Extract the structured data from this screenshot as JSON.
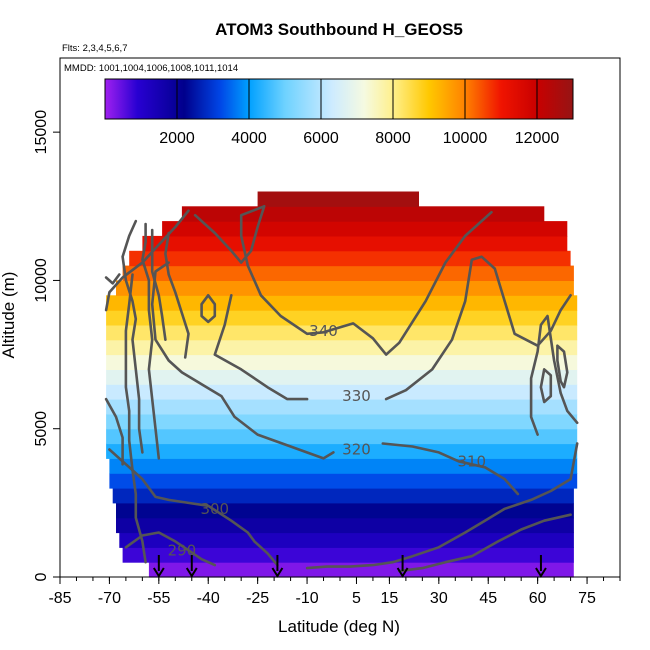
{
  "chart_data": {
    "type": "heatmap",
    "title": "ATOM3 Southbound H_GEOS5",
    "subtitle_flights": "Flts: 2,3,4,5,6,7",
    "subtitle_dates": "MMDD: 1001,1004,1006,1008,1011,1014",
    "xlabel": "Latitude (deg N)",
    "ylabel": "Altitude (m)",
    "xlim": [
      -85,
      85
    ],
    "ylim": [
      0,
      17500
    ],
    "x_ticks": [
      -85,
      -70,
      -55,
      -40,
      -25,
      -10,
      5,
      15,
      30,
      45,
      60,
      75
    ],
    "y_ticks": [
      0,
      5000,
      10000,
      15000
    ],
    "color_variable": "H_GEOS5 (geopotential height, m)",
    "colorbar": {
      "min": 0,
      "max": 13000,
      "ticks": [
        2000,
        4000,
        6000,
        8000,
        10000,
        12000
      ],
      "placement": "top-inside"
    },
    "grid": false,
    "altitude_rows": [
      {
        "alt": 250,
        "x0": -58,
        "x1": 71
      },
      {
        "alt": 750,
        "x0": -66,
        "x1": 71
      },
      {
        "alt": 1250,
        "x0": -67,
        "x1": 71
      },
      {
        "alt": 1750,
        "x0": -68,
        "x1": 71
      },
      {
        "alt": 2250,
        "x0": -68,
        "x1": 71
      },
      {
        "alt": 2750,
        "x0": -69,
        "x1": 71
      },
      {
        "alt": 3250,
        "x0": -70,
        "x1": 72
      },
      {
        "alt": 3750,
        "x0": -70,
        "x1": 72
      },
      {
        "alt": 4250,
        "x0": -71,
        "x1": 72
      },
      {
        "alt": 4750,
        "x0": -71,
        "x1": 72
      },
      {
        "alt": 5250,
        "x0": -71,
        "x1": 72
      },
      {
        "alt": 5750,
        "x0": -71,
        "x1": 72
      },
      {
        "alt": 6250,
        "x0": -71,
        "x1": 72
      },
      {
        "alt": 6750,
        "x0": -71,
        "x1": 72
      },
      {
        "alt": 7250,
        "x0": -71,
        "x1": 72
      },
      {
        "alt": 7750,
        "x0": -71,
        "x1": 72
      },
      {
        "alt": 8250,
        "x0": -71,
        "x1": 72
      },
      {
        "alt": 8750,
        "x0": -71,
        "x1": 72
      },
      {
        "alt": 9250,
        "x0": -71,
        "x1": 72
      },
      {
        "alt": 9750,
        "x0": -68,
        "x1": 71
      },
      {
        "alt": 10250,
        "x0": -66,
        "x1": 71
      },
      {
        "alt": 10750,
        "x0": -64,
        "x1": 70
      },
      {
        "alt": 11250,
        "x0": -60,
        "x1": 69
      },
      {
        "alt": 11750,
        "x0": -54,
        "x1": 69
      },
      {
        "alt": 12250,
        "x0": -48,
        "x1": 62
      },
      {
        "alt": 12750,
        "x0": -25,
        "x1": 24
      }
    ],
    "flight_arrows_lat": [
      -55,
      -45,
      -19,
      19,
      61
    ],
    "contours": [
      {
        "label": "340",
        "label_pos": [
          -5,
          8300
        ],
        "points": [
          [
            -46,
            12350
          ],
          [
            -50,
            11800
          ],
          [
            -55,
            11200
          ],
          [
            -60,
            10600
          ],
          [
            -66,
            10100
          ],
          [
            -70,
            9600
          ],
          [
            -71,
            9000
          ]
        ]
      },
      {
        "label": "340",
        "label_pos": [
          -5,
          8300
        ],
        "points": [
          [
            -23,
            12500
          ],
          [
            -30,
            12200
          ],
          [
            -30,
            11500
          ],
          [
            -28,
            10500
          ],
          [
            -24,
            9500
          ],
          [
            -18,
            8800
          ],
          [
            -10,
            8200
          ],
          [
            -5,
            8250
          ],
          [
            4,
            8550
          ],
          [
            10,
            8050
          ],
          [
            14,
            7500
          ],
          [
            18,
            7900
          ],
          [
            26,
            9300
          ],
          [
            32,
            10600
          ],
          [
            38,
            11500
          ],
          [
            46,
            12300
          ]
        ]
      },
      {
        "label": "330",
        "label_pos": [
          5,
          6100
        ],
        "points": [
          [
            -33,
            9500
          ],
          [
            -35,
            8500
          ],
          [
            -38,
            7500
          ],
          [
            -30,
            7000
          ],
          [
            -22,
            6400
          ],
          [
            -16,
            6000
          ],
          [
            -10,
            6000
          ]
        ]
      },
      {
        "label": "330",
        "label_pos": [
          5,
          6100
        ],
        "points": [
          [
            14,
            6000
          ],
          [
            20,
            6300
          ],
          [
            28,
            7000
          ],
          [
            34,
            8000
          ],
          [
            38,
            9300
          ],
          [
            40,
            10700
          ],
          [
            43,
            10800
          ],
          [
            47,
            10400
          ],
          [
            50,
            9300
          ],
          [
            53,
            8200
          ],
          [
            60,
            7800
          ],
          [
            64,
            8300
          ],
          [
            67,
            9000
          ],
          [
            70,
            9500
          ]
        ]
      },
      {
        "label": "320",
        "label_pos": [
          5,
          4300
        ],
        "points": [
          [
            -52,
            10600
          ],
          [
            -56,
            10300
          ],
          [
            -57,
            9200
          ],
          [
            -56,
            8000
          ],
          [
            -52,
            7300
          ],
          [
            -48,
            6900
          ],
          [
            -42,
            6500
          ],
          [
            -36,
            6100
          ],
          [
            -32,
            5400
          ],
          [
            -25,
            4800
          ],
          [
            -15,
            4400
          ],
          [
            -5,
            4000
          ],
          [
            -2,
            4200
          ]
        ]
      },
      {
        "label": "310",
        "label_pos": [
          40,
          3900
        ],
        "points": [
          [
            13,
            4500
          ],
          [
            22,
            4400
          ],
          [
            30,
            4200
          ],
          [
            36,
            3900
          ],
          [
            44,
            3700
          ],
          [
            50,
            3300
          ],
          [
            54,
            2800
          ]
        ]
      },
      {
        "label": "310",
        "label_pos": [
          40,
          3900
        ],
        "points": [
          [
            60,
            4800
          ],
          [
            58,
            5400
          ],
          [
            58,
            6700
          ],
          [
            60,
            7600
          ],
          [
            61,
            8500
          ],
          [
            63,
            8800
          ],
          [
            65,
            7300
          ],
          [
            67,
            6200
          ],
          [
            69,
            5600
          ],
          [
            72,
            5200
          ]
        ]
      },
      {
        "label": "300",
        "label_pos": [
          -38,
          2300
        ],
        "points": [
          [
            -70,
            4300
          ],
          [
            -65,
            3800
          ],
          [
            -60,
            3300
          ],
          [
            -56,
            2700
          ],
          [
            -52,
            2600
          ],
          [
            -46,
            2500
          ],
          [
            -40,
            2400
          ],
          [
            -33,
            1900
          ],
          [
            -28,
            1500
          ],
          [
            -26,
            1200
          ],
          [
            -22,
            800
          ],
          [
            -19,
            400
          ]
        ]
      },
      {
        "label": "300",
        "label_pos": [
          -38,
          2300
        ],
        "points": [
          [
            -10,
            300
          ],
          [
            -4,
            350
          ],
          [
            3,
            350
          ],
          [
            10,
            400
          ],
          [
            16,
            500
          ],
          [
            22,
            700
          ],
          [
            30,
            1000
          ],
          [
            38,
            1500
          ],
          [
            44,
            1900
          ],
          [
            50,
            2300
          ],
          [
            58,
            2600
          ],
          [
            64,
            2900
          ],
          [
            70,
            3300
          ],
          [
            72,
            4500
          ]
        ]
      },
      {
        "label": "290",
        "label_pos": [
          -48,
          900
        ],
        "points": [
          [
            -65,
            1000
          ],
          [
            -60,
            1400
          ],
          [
            -55,
            1500
          ],
          [
            -50,
            1200
          ],
          [
            -46,
            900
          ],
          [
            -42,
            600
          ],
          [
            -38,
            400
          ]
        ]
      },
      {
        "label": "290",
        "label_pos": [
          -48,
          900
        ],
        "points": [
          [
            18,
            200
          ],
          [
            25,
            300
          ],
          [
            32,
            500
          ],
          [
            40,
            700
          ],
          [
            48,
            1200
          ],
          [
            55,
            1600
          ],
          [
            62,
            1900
          ],
          [
            70,
            2100
          ]
        ]
      },
      {
        "label": "",
        "label_pos": null,
        "points": [
          [
            -62,
            12000
          ],
          [
            -64,
            11500
          ],
          [
            -66,
            10800
          ],
          [
            -65,
            10000
          ],
          [
            -63,
            9300
          ],
          [
            -62,
            8700
          ],
          [
            -63,
            8000
          ],
          [
            -62,
            7000
          ],
          [
            -61,
            6000
          ],
          [
            -61,
            5000
          ],
          [
            -60,
            4200
          ]
        ]
      },
      {
        "label": "",
        "label_pos": null,
        "points": [
          [
            -59,
            11900
          ],
          [
            -59,
            11300
          ],
          [
            -60,
            10700
          ],
          [
            -58,
            10000
          ],
          [
            -58,
            9000
          ],
          [
            -57,
            8000
          ],
          [
            -58,
            7000
          ],
          [
            -57,
            6000
          ],
          [
            -56,
            5000
          ],
          [
            -55,
            4000
          ]
        ]
      },
      {
        "label": "",
        "label_pos": null,
        "points": [
          [
            -57,
            11700
          ],
          [
            -57,
            11000
          ],
          [
            -57,
            10300
          ],
          [
            -55,
            9500
          ],
          [
            -54,
            8800
          ],
          [
            -53,
            8000
          ]
        ]
      },
      {
        "label": "",
        "label_pos": null,
        "points": [
          [
            -52,
            11600
          ],
          [
            -53,
            10900
          ],
          [
            -52,
            10200
          ],
          [
            -50,
            9600
          ],
          [
            -48,
            8900
          ],
          [
            -46,
            8200
          ],
          [
            -47,
            7400
          ]
        ]
      },
      {
        "label": "",
        "label_pos": null,
        "points": [
          [
            -63,
            10200
          ],
          [
            -64,
            9200
          ],
          [
            -65,
            8300
          ],
          [
            -65,
            7400
          ],
          [
            -65,
            6400
          ],
          [
            -64,
            5600
          ],
          [
            -64,
            4600
          ],
          [
            -63,
            3600
          ],
          [
            -62,
            2800
          ],
          [
            -62,
            2000
          ],
          [
            -60,
            1200
          ],
          [
            -59,
            500
          ]
        ]
      },
      {
        "label": "",
        "label_pos": null,
        "points": [
          [
            -71,
            10100
          ],
          [
            -69,
            9900
          ],
          [
            -67,
            10200
          ]
        ]
      },
      {
        "label": "",
        "label_pos": null,
        "points": [
          [
            -40,
            8600
          ],
          [
            -42,
            8800
          ],
          [
            -42,
            9200
          ],
          [
            -40,
            9500
          ],
          [
            -38,
            9200
          ],
          [
            -38,
            8800
          ],
          [
            -40,
            8600
          ]
        ]
      },
      {
        "label": "",
        "label_pos": null,
        "points": [
          [
            -71,
            6000
          ],
          [
            -68,
            5400
          ],
          [
            -66,
            4700
          ],
          [
            -66,
            3800
          ]
        ]
      },
      {
        "label": "",
        "label_pos": null,
        "points": [
          [
            -23,
            12500
          ],
          [
            -25,
            11800
          ],
          [
            -27,
            11000
          ],
          [
            -30,
            10600
          ],
          [
            -33,
            11000
          ],
          [
            -38,
            11600
          ],
          [
            -44,
            12200
          ]
        ]
      },
      {
        "label": "",
        "label_pos": null,
        "points": [
          [
            67,
            6600
          ],
          [
            66,
            7300
          ],
          [
            66,
            7800
          ],
          [
            68,
            7600
          ],
          [
            69,
            6900
          ],
          [
            68,
            6400
          ],
          [
            67,
            6600
          ]
        ]
      },
      {
        "label": "",
        "label_pos": null,
        "points": [
          [
            62,
            7000
          ],
          [
            61,
            6400
          ],
          [
            62,
            5900
          ],
          [
            64,
            6100
          ],
          [
            64,
            6800
          ],
          [
            62,
            7000
          ]
        ]
      }
    ]
  }
}
